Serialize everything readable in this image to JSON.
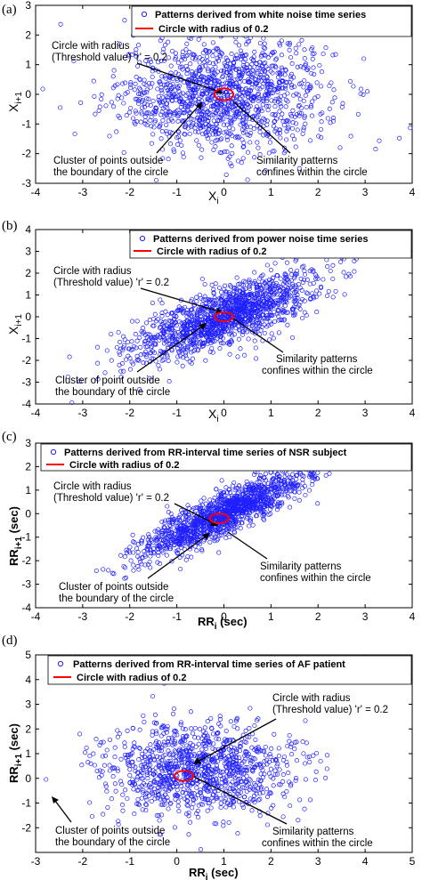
{
  "colors": {
    "points": "#1f1fff",
    "circle": "#ff0000",
    "axes": "#000000"
  },
  "chart_data": [
    {
      "type": "scatter",
      "panel": "(a)",
      "xlim": [
        -4,
        4
      ],
      "ylim": [
        -3,
        3
      ],
      "xticks": [
        "-4",
        "-3",
        "-2",
        "-1",
        "0",
        "1",
        "2",
        "3",
        "4"
      ],
      "yticks": [
        "-3",
        "-2",
        "-1",
        "0",
        "1",
        "2",
        "3"
      ],
      "xlabel": "X",
      "xlabel_sub": "i",
      "ylabel": "X",
      "ylabel_sub": "i+1",
      "legend": [
        "Patterns derived from white noise time series",
        "Circle with radius of 0.2"
      ],
      "circle": {
        "cx": 0,
        "cy": 0,
        "r": 0.2
      },
      "annotations": [
        {
          "lines": [
            "Circle with radius",
            "(Threshold value) 'r' = 0.2"
          ]
        },
        {
          "lines": [
            "Cluster of points outside",
            "the boundary of the circle"
          ]
        },
        {
          "lines": [
            "Similarity patterns",
            "confines within the circle"
          ]
        }
      ],
      "scatter_model": {
        "n": 1300,
        "mean": [
          0,
          0
        ],
        "sd": [
          1.1,
          0.95
        ],
        "corr": 0.05
      }
    },
    {
      "type": "scatter",
      "panel": "(b)",
      "xlim": [
        -4,
        4
      ],
      "ylim": [
        -4,
        4
      ],
      "xticks": [
        "-4",
        "-3",
        "-2",
        "-1",
        "0",
        "1",
        "2",
        "3",
        "4"
      ],
      "yticks": [
        "-4",
        "-3",
        "-2",
        "-1",
        "0",
        "1",
        "2",
        "3",
        "4"
      ],
      "xlabel": "X",
      "xlabel_sub": "i",
      "ylabel": "X",
      "ylabel_sub": "i+1",
      "legend": [
        "Patterns derived from power noise time series",
        "Circle with radius of 0.2"
      ],
      "circle": {
        "cx": 0,
        "cy": 0,
        "r": 0.2
      },
      "annotations": [
        {
          "lines": [
            "Circle with radius",
            "(Threshold value) 'r' = 0.2"
          ]
        },
        {
          "lines": [
            "Cluster of point outside",
            "the boundary of the circle"
          ]
        },
        {
          "lines": [
            "Similarity patterns",
            "confines within the circle"
          ]
        }
      ],
      "scatter_model": {
        "n": 1400,
        "mean": [
          0,
          0
        ],
        "sd": [
          1.0,
          1.0
        ],
        "corr": 0.75
      }
    },
    {
      "type": "scatter",
      "panel": "(c)",
      "xlim": [
        -4,
        4
      ],
      "ylim": [
        -4,
        3
      ],
      "xticks": [
        "-4",
        "-3",
        "-2",
        "-1",
        "0",
        "1",
        "2",
        "3",
        "4"
      ],
      "yticks": [
        "-4",
        "-3",
        "-2",
        "-1",
        "0",
        "1",
        "2",
        "3"
      ],
      "xlabel": "RR",
      "xlabel_sub": "i",
      "xlabel_suffix": " (sec)",
      "ylabel": "RR",
      "ylabel_sub": "i+1",
      "ylabel_suffix": " (sec)",
      "legend": [
        "Patterns derived from RR-interval time series of NSR subject",
        "Circle with radius of 0.2"
      ],
      "circle": {
        "cx": -0.1,
        "cy": -0.2,
        "r": 0.2
      },
      "annotations": [
        {
          "lines": [
            "Circle with radius",
            "(Threshold value) 'r' = 0.2"
          ]
        },
        {
          "lines": [
            "Cluster of points outside",
            "the boundary of the circle"
          ]
        },
        {
          "lines": [
            "Similarity patterns",
            "confines within the circle"
          ]
        }
      ],
      "scatter_model": {
        "n": 1400,
        "mean": [
          0,
          0
        ],
        "sd": [
          0.9,
          0.95
        ],
        "corr": 0.88
      }
    },
    {
      "type": "scatter",
      "panel": "(d)",
      "xlim": [
        -3,
        5
      ],
      "ylim": [
        -3,
        5
      ],
      "xticks": [
        "-3",
        "-2",
        "-1",
        "0",
        "1",
        "2",
        "3",
        "4",
        "5"
      ],
      "yticks": [
        "-2",
        "-1",
        "0",
        "1",
        "2",
        "3",
        "4",
        "5"
      ],
      "xlabel": "RR",
      "xlabel_sub": "i",
      "xlabel_suffix": " (sec)",
      "ylabel": "RR",
      "ylabel_sub": "i+1",
      "ylabel_suffix": " (sec)",
      "legend": [
        "Patterns derived from RR-interval time series of AF patient",
        "Circle with radius of 0.2"
      ],
      "circle": {
        "cx": 0.15,
        "cy": 0.1,
        "r": 0.2
      },
      "annotations": [
        {
          "lines": [
            "Circle with radius",
            "(Threshold value) 'r' = 0.2"
          ]
        },
        {
          "lines": [
            "Cluster of points outside",
            "the boundary of the circle"
          ]
        },
        {
          "lines": [
            "Similarity patterns",
            "confines within the circle"
          ]
        }
      ],
      "scatter_model": {
        "n": 1100,
        "mean": [
          0.4,
          0.3
        ],
        "sd": [
          1.0,
          0.95
        ],
        "corr": 0.0
      }
    }
  ]
}
